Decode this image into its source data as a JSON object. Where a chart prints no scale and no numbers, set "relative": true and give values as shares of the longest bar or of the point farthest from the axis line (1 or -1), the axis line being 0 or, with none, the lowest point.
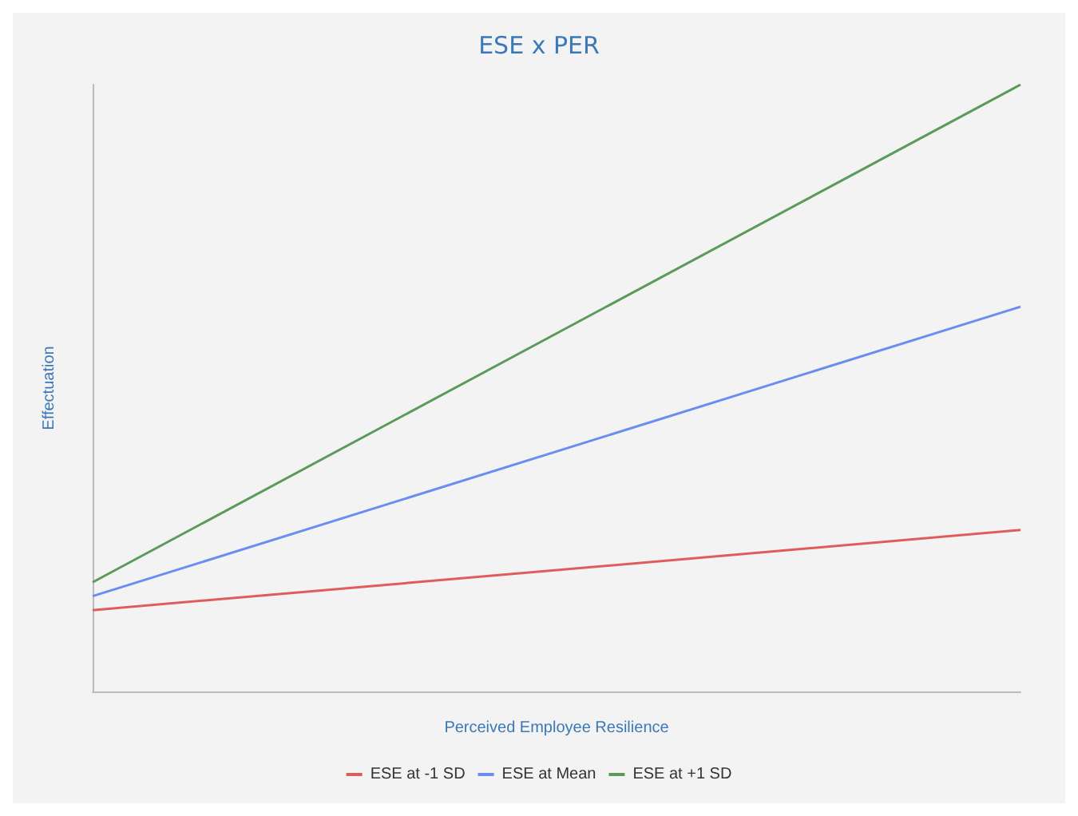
{
  "chart_data": {
    "type": "line",
    "title": "ESE x PER",
    "xlabel": "Perceived Employee Resilience",
    "ylabel": "Effectuation",
    "categories": [
      null,
      null
    ],
    "relative": true,
    "series": [
      {
        "name": "ESE at -1 SD",
        "color": "#e05c5c",
        "values": [
          0.134,
          0.266
        ]
      },
      {
        "name": "ESE at Mean",
        "color": "#6b8cf0",
        "values": [
          0.157,
          0.634
        ]
      },
      {
        "name": "ESE at +1 SD",
        "color": "#5a9a5a",
        "values": [
          0.18,
          1
        ]
      }
    ],
    "legend": "bottom",
    "grid": false,
    "marker": "none",
    "line_style": "solid"
  }
}
